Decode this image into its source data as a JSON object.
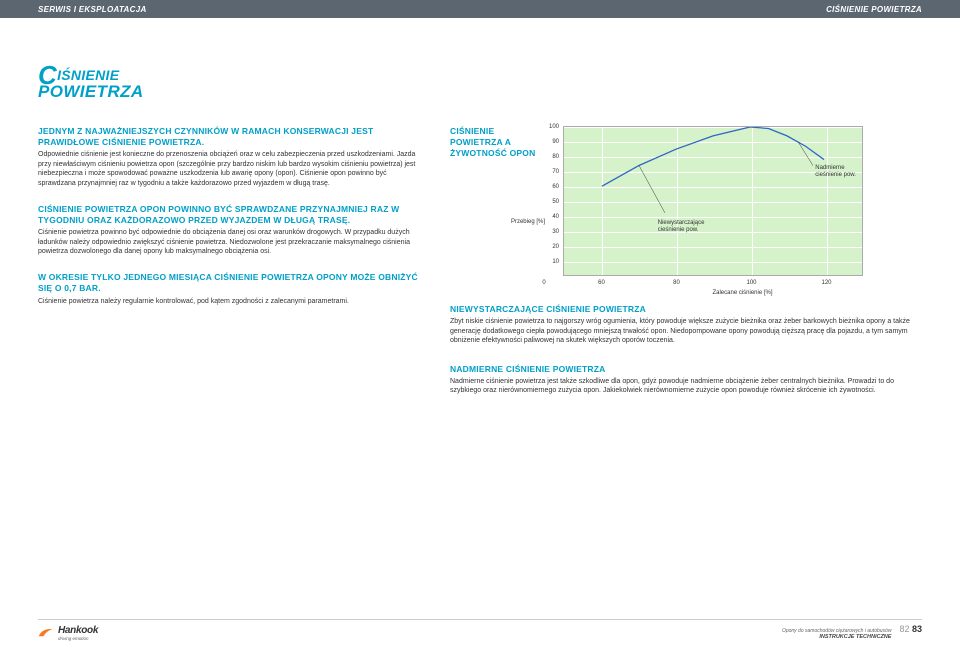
{
  "header": {
    "left": "SERWIS I EKSPLOATACJA",
    "right": "CIŚNIENIE POWIETRZA"
  },
  "title": {
    "line1_prefix": "C",
    "line1_rest": "IŚNIENIE",
    "line2": "POWIETRZA"
  },
  "left": {
    "sec1_h": "JEDNYM Z NAJWAŻNIEJSZYCH CZYNNIKÓW W RAMACH KONSERWACJI JEST PRAWIDŁOWE CIŚNIENIE POWIETRZA.",
    "sec1_p": "Odpowiednie ciśnienie jest konieczne do przenoszenia obciążeń oraz w celu zabezpieczenia przed uszkodzeniami. Jazda przy niewłaściwym ciśnieniu powietrza opon (szczególnie przy bardzo niskim lub bardzo wysokim ciśnieniu powietrza) jest niebezpieczna i może spowodować poważne uszkodzenia lub awarię opony (opon). Ciśnienie opon powinno być sprawdzana przynajmniej raz w tygodniu a także każdorazowo przed wyjazdem w długą trasę.",
    "sec2_h": "CIŚNIENIE POWIETRZA OPON POWINNO BYĆ SPRAWDZANE PRZYNAJMNIEJ RAZ W TYGODNIU ORAZ KAŻDORAZOWO PRZED WYJAZDEM W DŁUGĄ TRASĘ.",
    "sec2_p": "Ciśnienie powietrza powinno być odpowiednie do obciążenia danej osi oraz warunków drogowych. W przypadku dużych ładunków należy odpowiednio zwiększyć ciśnienie powietrza. Niedozwolone jest przekraczanie maksymalnego ciśnienia powietrza dozwolonego dla danej opony lub maksymalnego obciążenia osi.",
    "sec3_h": "W OKRESIE TYLKO JEDNEGO MIESIĄCA CIŚNIENIE POWIETRZA OPONY MOŻE OBNIŻYĆ SIĘ O 0,7 BAR.",
    "sec3_p": "Ciśnienie powietrza należy regularnie kontrolować, pod kątem zgodności z zalecanymi parametrami."
  },
  "chart": {
    "label": "CIŚNIENIE POWIETRZA A ŻYWOTNOŚĆ OPON",
    "yaxis_label": "Przebieg [%]",
    "xaxis_label": "Zalecane ciśnienie [%]",
    "yticks": [
      10,
      20,
      30,
      40,
      50,
      60,
      70,
      80,
      90,
      100
    ],
    "xticks": [
      0,
      60,
      80,
      100,
      120
    ],
    "xlim": [
      50,
      130
    ],
    "ylim": [
      0,
      100
    ],
    "curve_points": [
      [
        60,
        60
      ],
      [
        70,
        74
      ],
      [
        80,
        85
      ],
      [
        90,
        94
      ],
      [
        100,
        100
      ],
      [
        105,
        99
      ],
      [
        110,
        94
      ],
      [
        115,
        87
      ],
      [
        120,
        78
      ]
    ],
    "curve_color": "#2f66c4",
    "curve_width": 1.3,
    "anno_left": "Niewystarczające cieśnienie pow.",
    "anno_right": "Nadmierne cieśnienie pow.",
    "bg_color": "#d5f2ca",
    "grid_color": "#ffffff"
  },
  "right": {
    "sec1_h": "NIEWYSTARCZAJĄCE CIŚNIENIE POWIETRZA",
    "sec1_p": "Zbyt niskie ciśnienie powietrza to najgorszy wróg ogumienia, który powoduje większe zużycie bieżnika oraz żeber barkowych bieżnika opony a także generację dodatkowego ciepła powodującego mniejszą trwałość opon. Niedopompowane opony powodują cięższą pracę dla pojazdu, a tym samym obniżenie efektywności paliwowej na skutek większych oporów toczenia.",
    "sec2_h": "NADMIERNE CIŚNIENIE POWIETRZA",
    "sec2_p": "Nadmierne ciśnienie powietrza jest także szkodliwe dla opon, gdyż powoduje nadmierne obciążenie żeber centralnych bieżnika.  Prowadzi to do szybkiego oraz nierównomiernego zużycia opon. Jakiekolwiek nierównomierne zużycie opon powoduje również skrócenie ich żywotności."
  },
  "footer": {
    "brand": "Hankook",
    "tagline": "driving emotion",
    "meta_line1": "Opony do samochodów ciężarowych i autobusów",
    "meta_line2": "INSTRUKCJE TECHNICZNE",
    "page_left": "82",
    "page_right": "83"
  }
}
